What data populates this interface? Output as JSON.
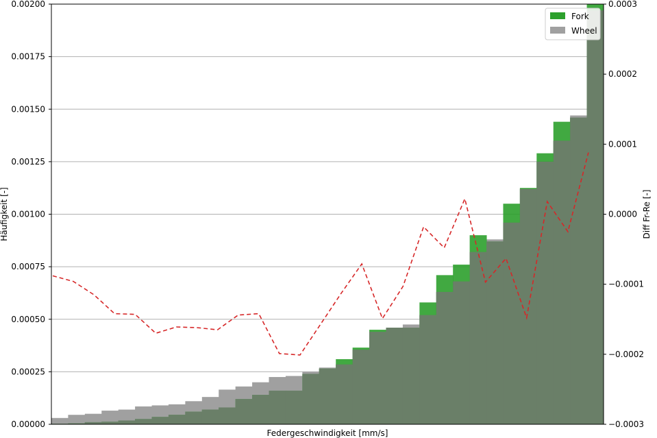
{
  "chart_data": {
    "type": "bar",
    "title": "",
    "xlabel": "Federgeschwindigkeit [mm/s]",
    "ylabel": "Häufigkeit [-]",
    "y2label": "Diff Fr-Re [-]",
    "ylim": [
      0,
      0.002
    ],
    "y2lim": [
      -0.0003,
      0.0003
    ],
    "yticks": [
      "0.00000",
      "0.00025",
      "0.00050",
      "0.00075",
      "0.00100",
      "0.00125",
      "0.00150",
      "0.00175",
      "0.00200"
    ],
    "y2ticks": [
      "−0.0003",
      "−0.0002",
      "−0.0001",
      "0.0000",
      "0.0001",
      "0.0002",
      "0.0003"
    ],
    "grid": true,
    "legend_position": "top-right",
    "series": [
      {
        "name": "Fork",
        "color": "#2ca02c",
        "values": [
          2e-06,
          4e-06,
          1e-05,
          1.2e-05,
          1.8e-05,
          2.5e-05,
          3.5e-05,
          4.5e-05,
          6e-05,
          7e-05,
          8e-05,
          0.00012,
          0.00014,
          0.00016,
          0.00016,
          0.00024,
          0.000265,
          0.00031,
          0.000365,
          0.00045,
          0.00046,
          0.00046,
          0.00058,
          0.00071,
          0.00076,
          0.0009,
          0.00087,
          0.00105,
          0.001125,
          0.00129,
          0.00144,
          0.00146,
          0.002
        ]
      },
      {
        "name": "Wheel",
        "color": "#a0a0a0",
        "values": [
          3e-05,
          4.5e-05,
          5e-05,
          6.5e-05,
          7e-05,
          8.5e-05,
          9e-05,
          9.5e-05,
          0.00011,
          0.00013,
          0.000165,
          0.00018,
          0.0002,
          0.000225,
          0.00023,
          0.00025,
          0.00027,
          0.000285,
          0.000355,
          0.00044,
          0.00046,
          0.000475,
          0.00052,
          0.00063,
          0.00068,
          0.00082,
          0.00088,
          0.00096,
          0.00112,
          0.00125,
          0.00135,
          0.00147,
          0.00197
        ]
      }
    ],
    "diff_line": {
      "color": "#d62728",
      "style": "dashed",
      "points": [
        [
          0,
          -8.8e-05
        ],
        [
          1,
          -9.6e-05
        ],
        [
          2,
          -0.000115
        ],
        [
          3,
          -0.000142
        ],
        [
          4,
          -0.000143
        ],
        [
          5,
          -0.00017
        ],
        [
          6,
          -0.000161
        ],
        [
          7,
          -0.000162
        ],
        [
          8,
          -0.000165
        ],
        [
          9,
          -0.000144
        ],
        [
          10,
          -0.000142
        ],
        [
          11,
          -0.000199
        ],
        [
          12,
          -0.000201
        ],
        [
          13,
          -0.000157
        ],
        [
          14,
          -0.000113
        ],
        [
          15,
          -7.1e-05
        ],
        [
          16,
          -0.000149
        ],
        [
          17,
          -0.000103
        ],
        [
          18,
          -1.8e-05
        ],
        [
          19,
          -4.8e-05
        ],
        [
          20,
          2.2e-05
        ],
        [
          21,
          -9.7e-05
        ],
        [
          22,
          -6.3e-05
        ],
        [
          23,
          -0.000148
        ],
        [
          24,
          1.8e-05
        ],
        [
          25,
          -2.5e-05
        ],
        [
          26,
          8.8e-05
        ]
      ]
    }
  }
}
